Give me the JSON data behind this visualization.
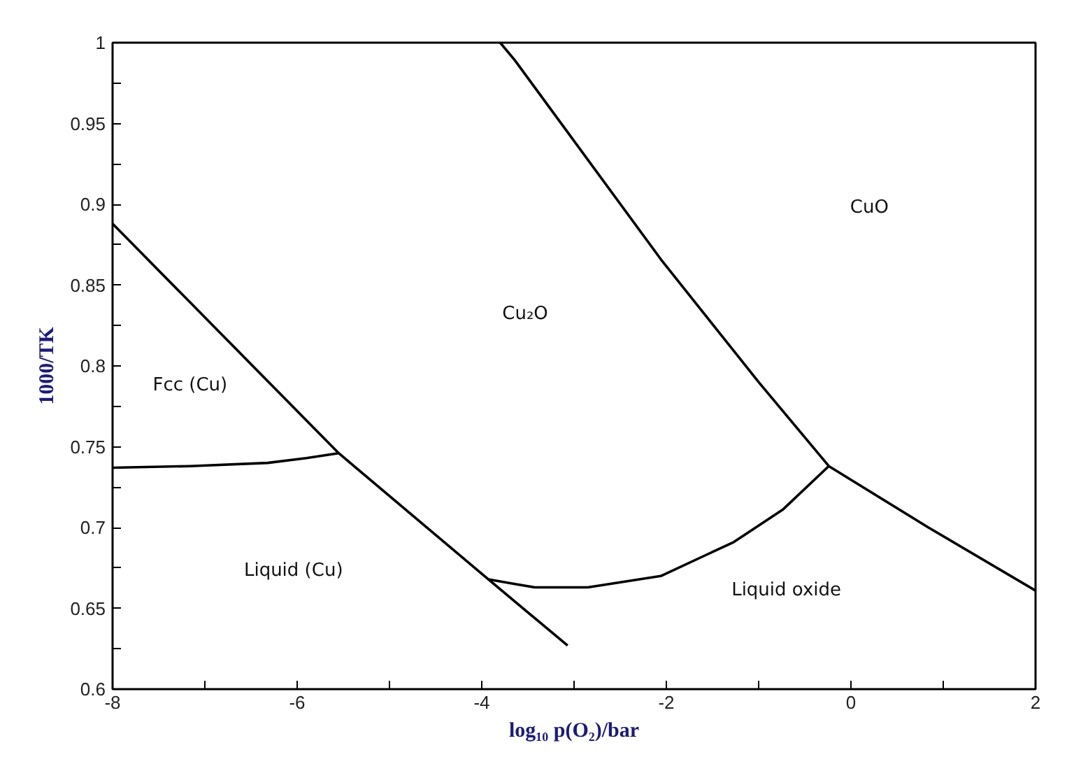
{
  "chart_data": {
    "type": "line",
    "xlabel": "log₁₀ p(O₂)/bar",
    "ylabel": "1000/TK",
    "xlim": [
      -8,
      2
    ],
    "ylim": [
      0.6,
      1
    ],
    "xticks": [
      -8,
      {
        "value": -7,
        "label": null
      },
      -6,
      {
        "value": -5,
        "label": null
      },
      -4,
      {
        "value": -3,
        "label": null
      },
      -2,
      {
        "value": -1,
        "label": null
      },
      0,
      {
        "value": 1,
        "label": null
      },
      2
    ],
    "yticks": [
      0.6,
      {
        "value": 0.625,
        "label": null
      },
      0.65,
      {
        "value": 0.675,
        "label": null
      },
      0.7,
      {
        "value": 0.725,
        "label": null
      },
      0.75,
      {
        "value": 0.775,
        "label": null
      },
      0.8,
      {
        "value": 0.825,
        "label": null
      },
      0.85,
      {
        "value": 0.875,
        "label": null
      },
      0.9,
      {
        "value": 0.925,
        "label": null
      },
      0.95,
      {
        "value": 0.975,
        "label": null
      },
      1
    ],
    "grid": false,
    "marker": "none",
    "line_style": "solid",
    "series": [
      {
        "color": "#000000",
        "x": [
          -8,
          -5.55,
          -3.93,
          -3.07
        ],
        "values": [
          0.888,
          0.746,
          0.668,
          0.627
        ]
      },
      {
        "color": "#000000",
        "x": [
          -8,
          -7.16,
          -6.32,
          -5.9,
          -5.55
        ],
        "values": [
          0.737,
          0.738,
          0.74,
          0.743,
          0.746
        ]
      },
      {
        "color": "#000000",
        "x": [
          -3.8,
          -3.64,
          -2.06,
          -1.0,
          -0.24,
          0.84,
          2
        ],
        "values": [
          1,
          0.989,
          0.866,
          0.79,
          0.738,
          0.7,
          0.661
        ]
      },
      {
        "color": "#000000",
        "x": [
          -3.93,
          -3.64,
          -3.43,
          -2.85,
          -2.06,
          -1.27,
          -0.74,
          -0.24
        ],
        "values": [
          0.668,
          0.665,
          0.663,
          0.663,
          0.67,
          0.691,
          0.711,
          0.738
        ]
      }
    ],
    "annotations": [
      "Fcc (Cu)",
      "Liquid (Cu)",
      "Cu₂O",
      "CuO",
      "Liquid oxide"
    ]
  }
}
